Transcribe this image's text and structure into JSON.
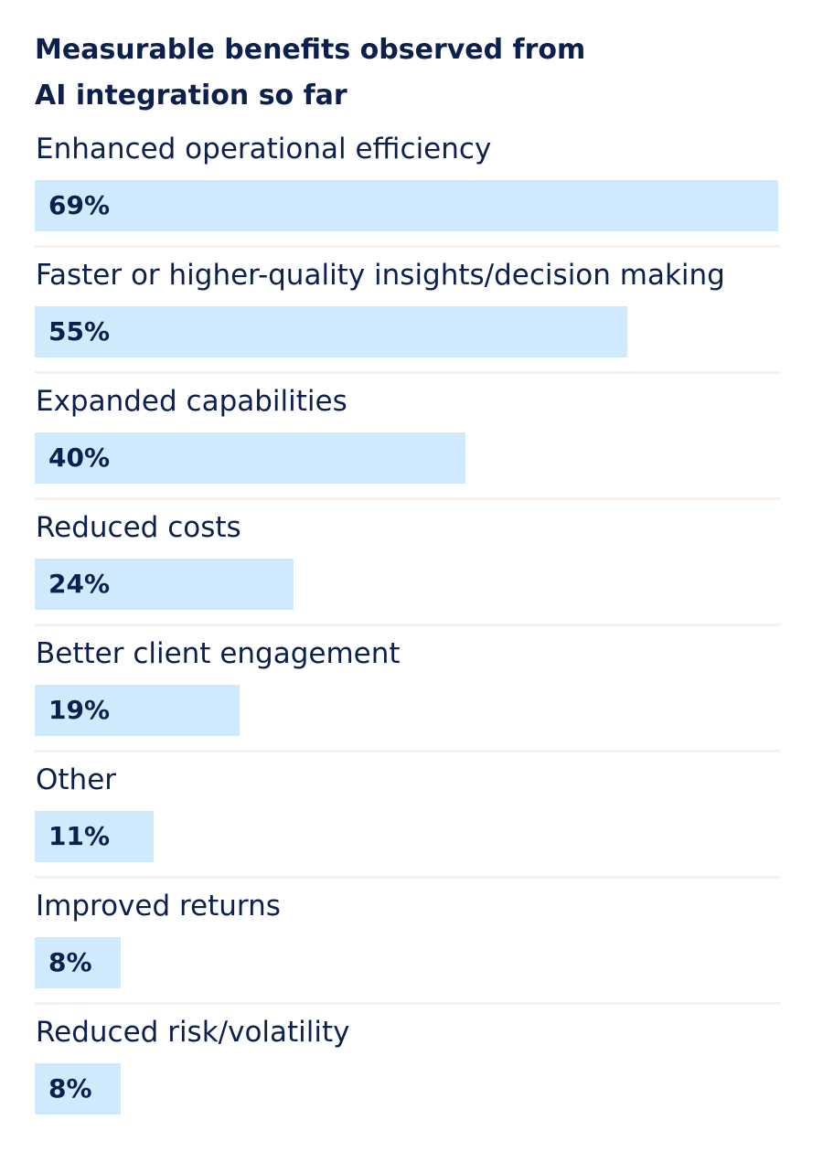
{
  "chart_data": {
    "type": "bar",
    "orientation": "horizontal",
    "title": "Measurable benefits observed from AI integration so far",
    "categories": [
      "Enhanced operational efficiency",
      "Faster or higher-quality insights/decision making",
      "Expanded capabilities",
      "Reduced costs",
      "Better client engagement",
      "Other",
      "Improved returns",
      "Reduced risk/volatility"
    ],
    "values": [
      69,
      55,
      40,
      24,
      19,
      11,
      8,
      8
    ],
    "value_labels": [
      "69%",
      "55%",
      "40%",
      "24%",
      "19%",
      "11%",
      "8%",
      "8%"
    ],
    "xlim": [
      0,
      69
    ],
    "grid": false,
    "legend": "none",
    "bar_color": "#cfe9fd",
    "text_color": "#0c1f4d",
    "divider_color": "#f7f0eb"
  }
}
